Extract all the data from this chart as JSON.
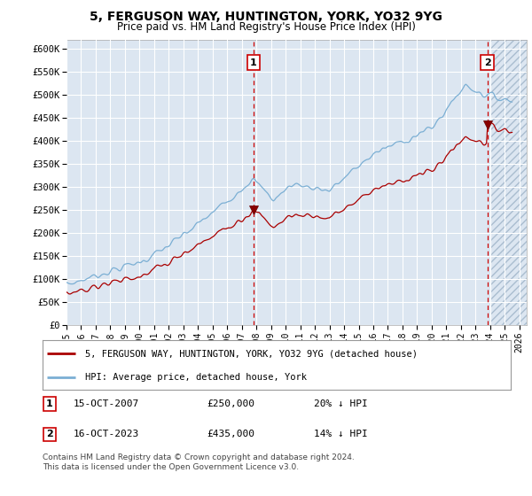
{
  "title": "5, FERGUSON WAY, HUNTINGTON, YORK, YO32 9YG",
  "subtitle": "Price paid vs. HM Land Registry's House Price Index (HPI)",
  "ylabel_ticks": [
    "£0",
    "£50K",
    "£100K",
    "£150K",
    "£200K",
    "£250K",
    "£300K",
    "£350K",
    "£400K",
    "£450K",
    "£500K",
    "£550K",
    "£600K"
  ],
  "ylim": [
    0,
    620000
  ],
  "ytick_vals": [
    0,
    50000,
    100000,
    150000,
    200000,
    250000,
    300000,
    350000,
    400000,
    450000,
    500000,
    550000,
    600000
  ],
  "xlim_start": 1995.0,
  "xlim_end": 2026.5,
  "background_color": "#dce6f1",
  "grid_color": "#ffffff",
  "hpi_color": "#7bafd4",
  "price_color": "#aa0000",
  "marker1_x": 2007.8,
  "marker2_x": 2023.8,
  "marker1_price": 250000,
  "marker2_price": 435000,
  "marker1_label": "15-OCT-2007",
  "marker2_label": "16-OCT-2023",
  "marker1_hpi_pct": "20% ↓ HPI",
  "marker2_hpi_pct": "14% ↓ HPI",
  "legend_line1": "5, FERGUSON WAY, HUNTINGTON, YORK, YO32 9YG (detached house)",
  "legend_line2": "HPI: Average price, detached house, York",
  "footer": "Contains HM Land Registry data © Crown copyright and database right 2024.\nThis data is licensed under the Open Government Licence v3.0.",
  "xtick_years": [
    1995,
    1996,
    1997,
    1998,
    1999,
    2000,
    2001,
    2002,
    2003,
    2004,
    2005,
    2006,
    2007,
    2008,
    2009,
    2010,
    2011,
    2012,
    2013,
    2014,
    2015,
    2016,
    2017,
    2018,
    2019,
    2020,
    2021,
    2022,
    2023,
    2024,
    2025,
    2026
  ]
}
